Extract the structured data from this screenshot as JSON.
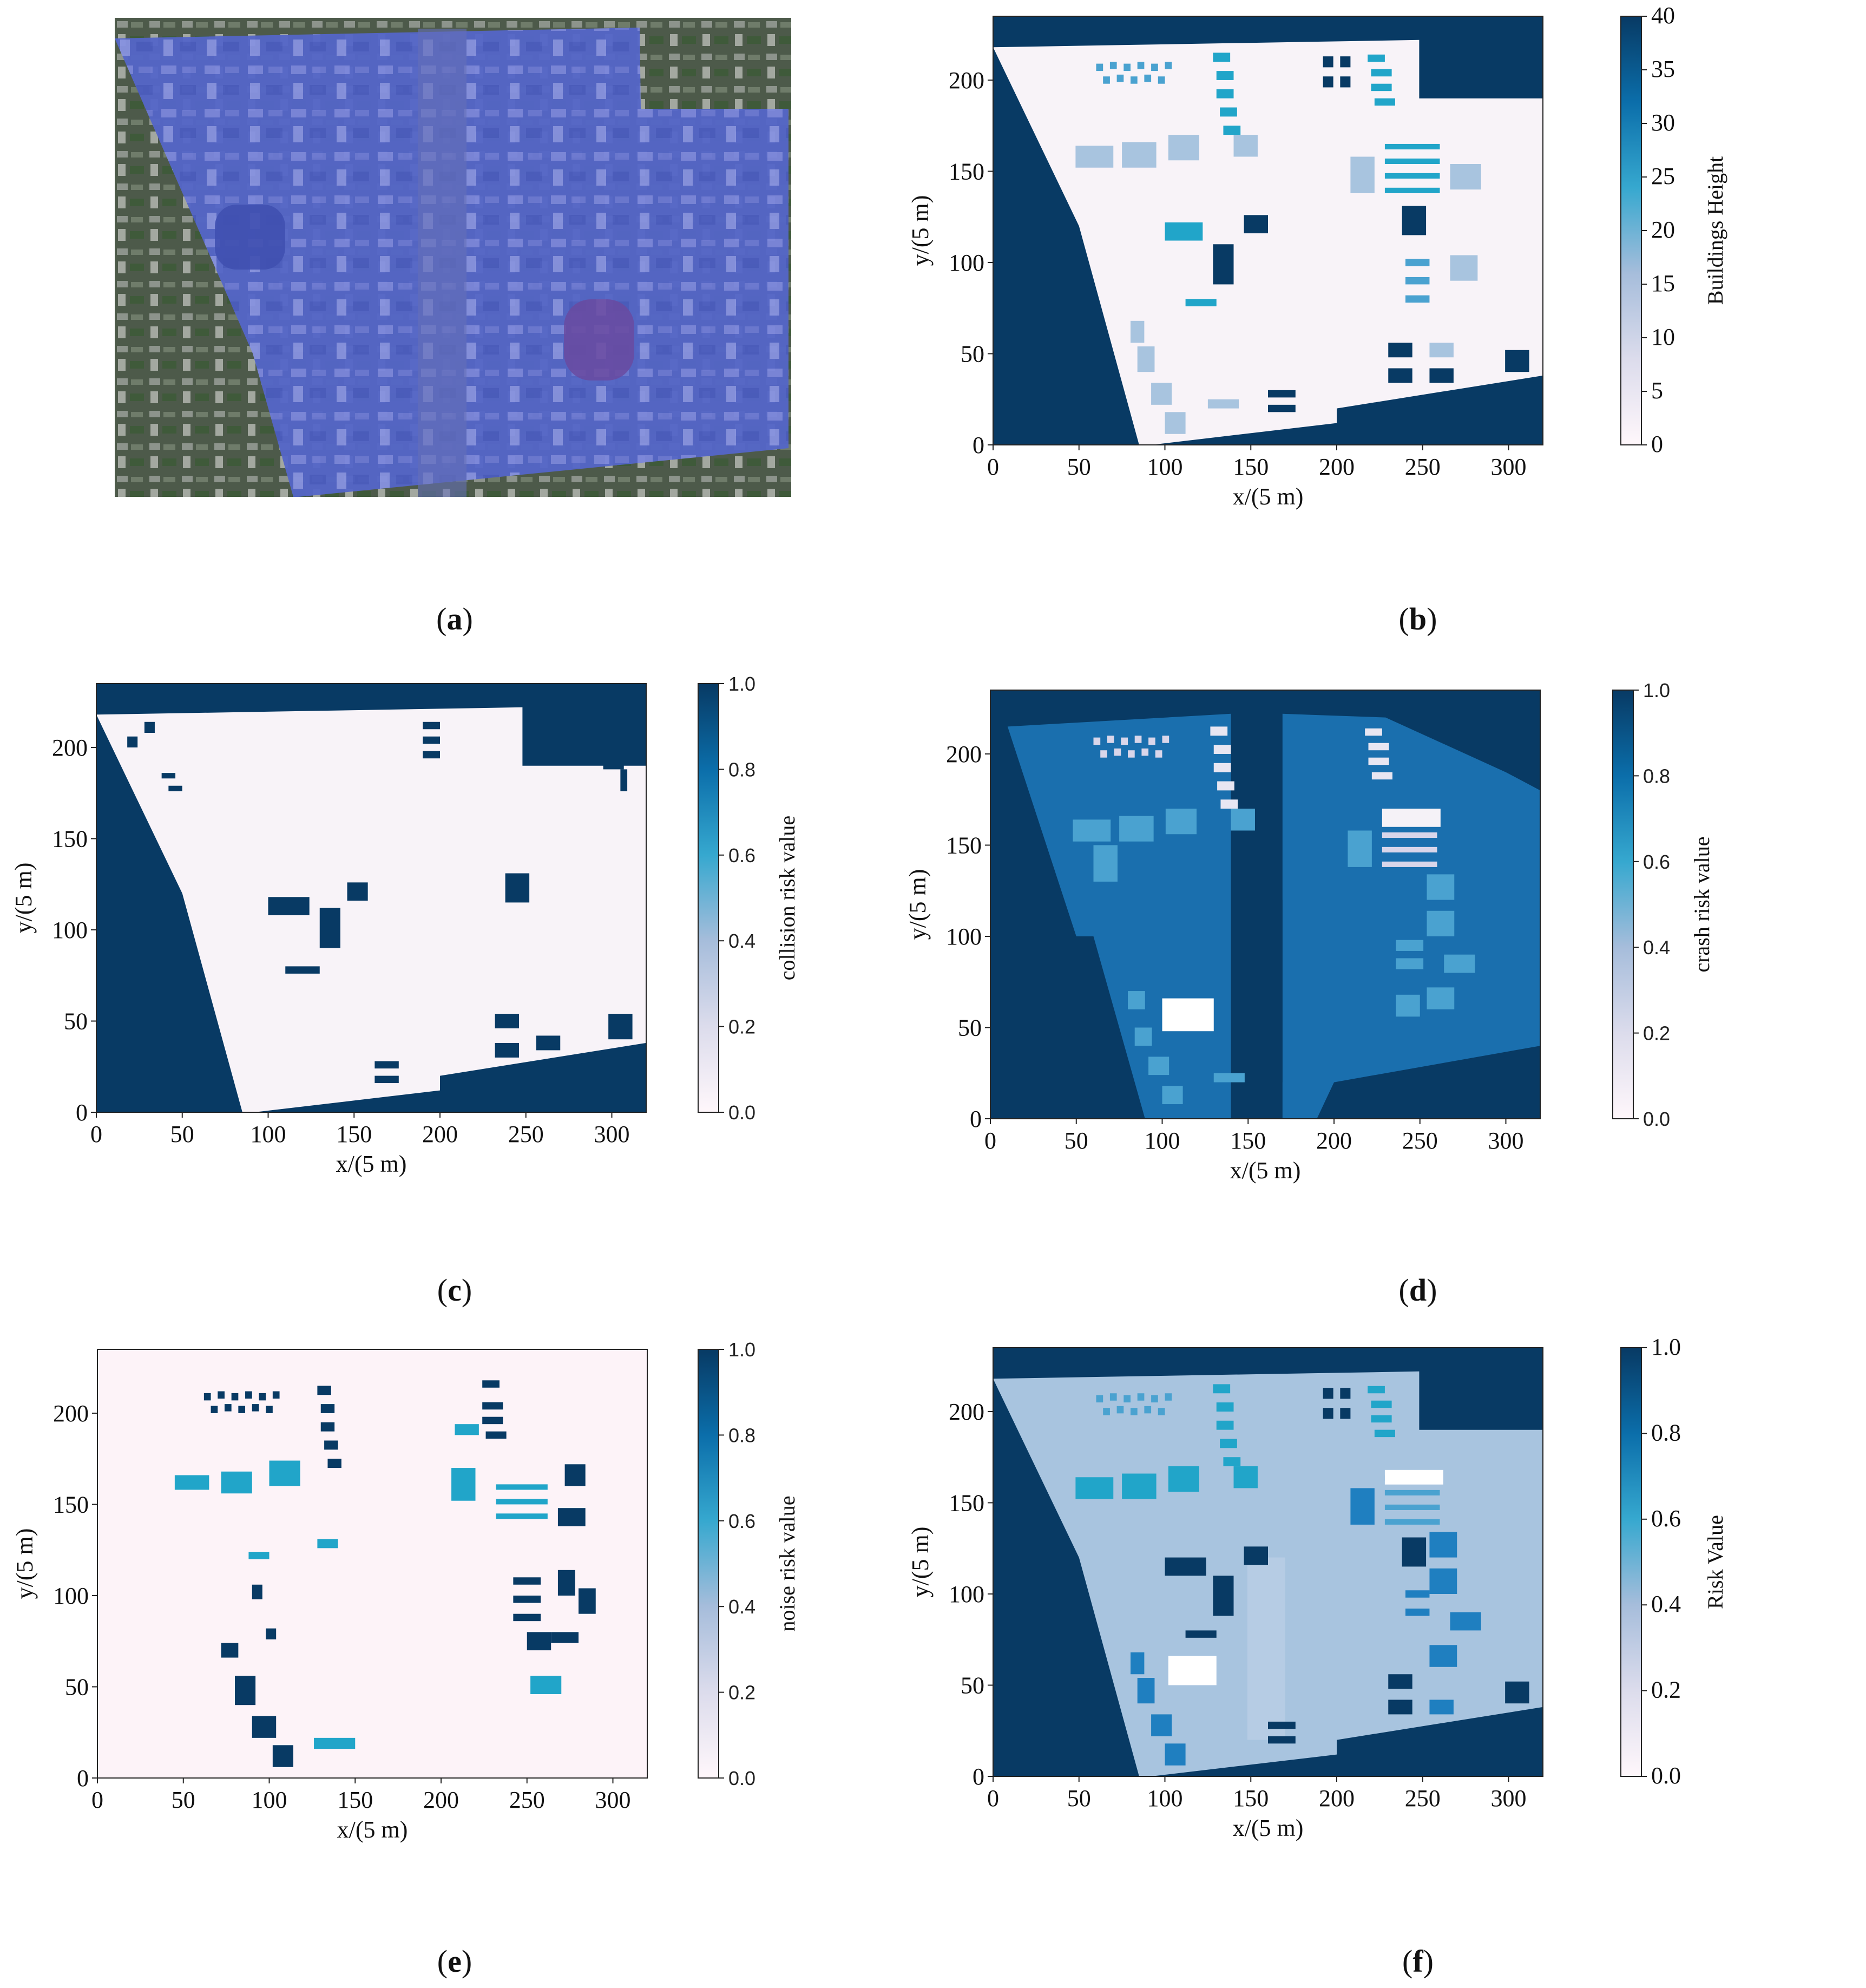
{
  "captions": [
    "a",
    "b",
    "c",
    "d",
    "e",
    "f"
  ],
  "colors": {
    "dark_navy": "#083a64",
    "map_white": "#f8f3f8",
    "light_blue": "#a8c4df",
    "mid_blue": "#4aa2d0",
    "cyan": "#21a5c9",
    "satellite_blue": "#5f6fd6"
  },
  "chart_data": [
    {
      "id": "a",
      "type": "image",
      "description_shown": "satellite image with blue overlay polygon"
    },
    {
      "id": "b",
      "type": "heatmap",
      "xlabel": "x/(5 m)",
      "ylabel": "y/(5 m)",
      "xticks": [
        0,
        50,
        100,
        150,
        200,
        250,
        300
      ],
      "yticks": [
        0,
        50,
        100,
        150,
        200
      ],
      "xlim": [
        0,
        320
      ],
      "ylim": [
        0,
        235
      ],
      "colorbar": {
        "label": "Buildings Height",
        "ticks": [
          0,
          5,
          10,
          15,
          20,
          25,
          30,
          35,
          40
        ],
        "range": [
          0,
          40
        ]
      }
    },
    {
      "id": "c",
      "type": "heatmap",
      "xlabel": "x/(5 m)",
      "ylabel": "y/(5 m)",
      "xticks": [
        0,
        50,
        100,
        150,
        200,
        250,
        300
      ],
      "yticks": [
        0,
        50,
        100,
        150,
        200
      ],
      "xlim": [
        0,
        320
      ],
      "ylim": [
        0,
        235
      ],
      "colorbar": {
        "label": "collision risk value",
        "ticks": [
          "0.0",
          "0.2",
          "0.4",
          "0.6",
          "0.8",
          "1.0"
        ],
        "range": [
          0,
          1
        ]
      }
    },
    {
      "id": "d",
      "type": "heatmap",
      "xlabel": "x/(5 m)",
      "ylabel": "y/(5 m)",
      "xticks": [
        0,
        50,
        100,
        150,
        200,
        250,
        300
      ],
      "yticks": [
        0,
        50,
        100,
        150,
        200
      ],
      "xlim": [
        0,
        320
      ],
      "ylim": [
        0,
        235
      ],
      "colorbar": {
        "label": "crash risk value",
        "ticks": [
          "0.0",
          "0.2",
          "0.4",
          "0.6",
          "0.8",
          "1.0"
        ],
        "range": [
          0,
          1
        ]
      }
    },
    {
      "id": "e",
      "type": "heatmap",
      "xlabel": "x/(5 m)",
      "ylabel": "y/(5 m)",
      "xticks": [
        0,
        50,
        100,
        150,
        200,
        250,
        300
      ],
      "yticks": [
        0,
        50,
        100,
        150,
        200
      ],
      "xlim": [
        0,
        320
      ],
      "ylim": [
        0,
        235
      ],
      "colorbar": {
        "label": "noise risk value",
        "ticks": [
          "0.0",
          "0.2",
          "0.4",
          "0.6",
          "0.8",
          "1.0"
        ],
        "range": [
          0,
          1
        ]
      }
    },
    {
      "id": "f",
      "type": "heatmap",
      "xlabel": "x/(5 m)",
      "ylabel": "y/(5 m)",
      "xticks": [
        0,
        50,
        100,
        150,
        200,
        250,
        300
      ],
      "yticks": [
        0,
        50,
        100,
        150,
        200
      ],
      "xlim": [
        0,
        320
      ],
      "ylim": [
        0,
        235
      ],
      "colorbar": {
        "label": "Risk Value",
        "ticks": [
          "0.0",
          "0.2",
          "0.4",
          "0.6",
          "0.8",
          "1.0"
        ],
        "range": [
          0,
          1
        ]
      }
    }
  ]
}
